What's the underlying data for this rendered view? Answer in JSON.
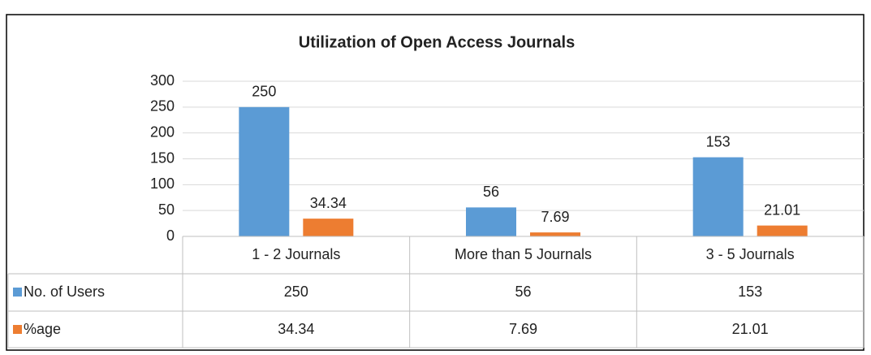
{
  "chart_data": {
    "type": "bar",
    "title": "Utilization of Open Access Journals",
    "categories": [
      "1 - 2 Journals",
      "More than 5 Journals",
      "3 - 5 Journals"
    ],
    "series": [
      {
        "name": "No. of Users",
        "color": "#5b9bd5",
        "values": [
          250,
          56,
          153
        ]
      },
      {
        "name": "%age",
        "color": "#ed7d31",
        "values": [
          34.34,
          7.69,
          21.01
        ]
      }
    ],
    "ylim": [
      0,
      300
    ],
    "yticks": [
      0,
      50,
      100,
      150,
      200,
      250,
      300
    ],
    "grid": true,
    "data_table": true
  }
}
